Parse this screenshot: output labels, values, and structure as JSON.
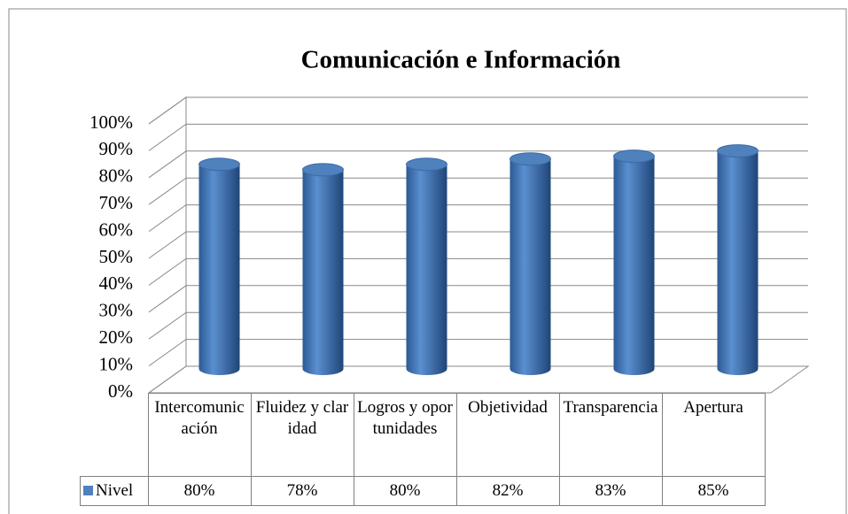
{
  "chart_data": {
    "type": "bar",
    "title": "Comunicación e Información",
    "categories": [
      "Intercomunicación",
      "Fluidez y claridad",
      "Logros y oportunidades",
      "Objetividad",
      "Transparencia",
      "Apertura"
    ],
    "series": [
      {
        "name": "Nivel",
        "color": "#4f81bd",
        "values": [
          80,
          78,
          80,
          82,
          83,
          85
        ],
        "value_labels": [
          "80%",
          "78%",
          "80%",
          "82%",
          "83%",
          "85%"
        ]
      }
    ],
    "ylim": [
      0,
      100
    ],
    "yticks": [
      {
        "value": 0,
        "label": "0%"
      },
      {
        "value": 10,
        "label": "10%"
      },
      {
        "value": 20,
        "label": "20%"
      },
      {
        "value": 30,
        "label": "30%"
      },
      {
        "value": 40,
        "label": "40%"
      },
      {
        "value": 50,
        "label": "50%"
      },
      {
        "value": 60,
        "label": "60%"
      },
      {
        "value": 70,
        "label": "70%"
      },
      {
        "value": 80,
        "label": "80%"
      },
      {
        "value": 90,
        "label": "90%"
      },
      {
        "value": 100,
        "label": "100%"
      }
    ],
    "grid": true
  }
}
